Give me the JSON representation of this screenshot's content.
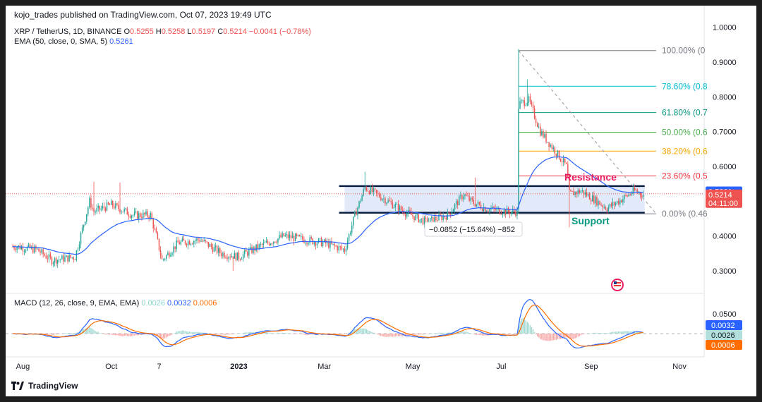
{
  "header": "kojo_trades published on TradingView.com, Oct 07, 2023 19:49 UTC",
  "footer": "TradingView",
  "legend": {
    "symbol": "XRP / TetherUS, 1D, BINANCE",
    "o_label": "O",
    "o": "0.5255",
    "h_label": "H",
    "h": "0.5258",
    "l_label": "L",
    "l": "0.5197",
    "c_label": "C",
    "c": "0.5214",
    "change": "−0.0041 (−0.78%)",
    "ema_label": "EMA (50, close, 0, SMA, 5)",
    "ema_value": "0.5261",
    "macd_label": "MACD (12, 26, close, 9, EMA, EMA)",
    "macd_hist": "0.0026",
    "macd_line": "0.0032",
    "macd_signal": "0.0006"
  },
  "annotations": {
    "resistance": "Resistance",
    "support": "Support",
    "measure": "−0.0852 (−15.64%) −852"
  },
  "price_labels": {
    "ema": "0.5261",
    "close": "0.5214",
    "countdown": "04:11:00"
  },
  "macd_labels": {
    "line": "0.0032",
    "hist": "0.0026",
    "signal": "0.0006"
  },
  "colors": {
    "up": "#26a69a",
    "down": "#ef5350",
    "ema": "#2962ff",
    "macd": "#2962ff",
    "signal": "#ff6d00",
    "fib_100": "#787b86",
    "fib_786": "#00bcd4",
    "fib_618": "#089981",
    "fib_500": "#4caf50",
    "fib_382": "#f7a600",
    "fib_236": "#f23645",
    "fib_0": "#787b86",
    "zone": "#d6dff6",
    "resistance": "#e91e63",
    "support": "#089981"
  },
  "chart_data": {
    "type": "candlestick",
    "price_axis": {
      "ylim": [
        0.27,
        1.0
      ],
      "ticks": [
        "1.0000",
        "0.9000",
        "0.8000",
        "0.7000",
        "0.6000",
        "0.4000",
        "0.3000"
      ]
    },
    "x_axis": {
      "labels": [
        "Aug",
        "Oct",
        "7",
        "2023",
        "Mar",
        "May",
        "Jul",
        "Sep",
        "Nov"
      ]
    },
    "price_path": [
      [
        "2022-08-01",
        0.37
      ],
      [
        "2022-08-15",
        0.36
      ],
      [
        "2022-08-25",
        0.33
      ],
      [
        "2022-09-10",
        0.34
      ],
      [
        "2022-09-20",
        0.5
      ],
      [
        "2022-09-23",
        0.47
      ],
      [
        "2022-10-05",
        0.49
      ],
      [
        "2022-10-20",
        0.46
      ],
      [
        "2022-11-01",
        0.46
      ],
      [
        "2022-11-05",
        0.4
      ],
      [
        "2022-11-09",
        0.33
      ],
      [
        "2022-11-20",
        0.38
      ],
      [
        "2022-12-05",
        0.39
      ],
      [
        "2022-12-20",
        0.35
      ],
      [
        "2023-01-01",
        0.34
      ],
      [
        "2023-01-15",
        0.37
      ],
      [
        "2023-02-01",
        0.4
      ],
      [
        "2023-02-15",
        0.39
      ],
      [
        "2023-03-01",
        0.38
      ],
      [
        "2023-03-15",
        0.36
      ],
      [
        "2023-03-22",
        0.46
      ],
      [
        "2023-03-29",
        0.54
      ],
      [
        "2023-04-10",
        0.51
      ],
      [
        "2023-04-25",
        0.47
      ],
      [
        "2023-05-10",
        0.44
      ],
      [
        "2023-05-25",
        0.46
      ],
      [
        "2023-06-05",
        0.52
      ],
      [
        "2023-06-10",
        0.5
      ],
      [
        "2023-06-20",
        0.48
      ],
      [
        "2023-07-05",
        0.47
      ],
      [
        "2023-07-12",
        0.47
      ],
      [
        "2023-07-13",
        0.78
      ],
      [
        "2023-07-20",
        0.79
      ],
      [
        "2023-07-28",
        0.7
      ],
      [
        "2023-08-08",
        0.64
      ],
      [
        "2023-08-15",
        0.6
      ],
      [
        "2023-08-17",
        0.52
      ],
      [
        "2023-08-25",
        0.53
      ],
      [
        "2023-09-05",
        0.5
      ],
      [
        "2023-09-12",
        0.48
      ],
      [
        "2023-09-20",
        0.5
      ],
      [
        "2023-10-01",
        0.53
      ],
      [
        "2023-10-07",
        0.52
      ]
    ],
    "spikes": [
      [
        "2022-09-23",
        0.556
      ],
      [
        "2022-10-11",
        0.554
      ],
      [
        "2023-03-29",
        0.585
      ],
      [
        "2023-06-13",
        0.568
      ],
      [
        "2023-07-13",
        0.938
      ],
      [
        "2023-07-19",
        0.85
      ],
      [
        "2023-08-17",
        0.425
      ],
      [
        "2022-12-28",
        0.3
      ]
    ],
    "last_candle": {
      "open": 0.5255,
      "high": 0.5258,
      "low": 0.5197,
      "close": 0.5214
    },
    "ema_last": 0.5261,
    "fib_levels": [
      {
        "label": "100.00% (0",
        "value": 0.933
      },
      {
        "label": "78.60% (0.8",
        "value": 0.8305
      },
      {
        "label": "61.80% (0.7",
        "value": 0.7548
      },
      {
        "label": "50.00% (0.6",
        "value": 0.6983
      },
      {
        "label": "38.20% (0.6",
        "value": 0.644
      },
      {
        "label": "23.60% (0.5",
        "value": 0.573
      },
      {
        "label": "0.00% (0.46",
        "value": 0.464
      }
    ],
    "zone": {
      "from": "2023-03-15",
      "to": "2023-10-08",
      "top": 0.5436,
      "bottom": 0.467
    },
    "macd": {
      "ylim": [
        -0.045,
        0.09
      ],
      "ticks": [
        "0.0500"
      ],
      "last": {
        "macd": 0.0032,
        "signal": 0.0006,
        "hist": 0.0026
      }
    }
  }
}
